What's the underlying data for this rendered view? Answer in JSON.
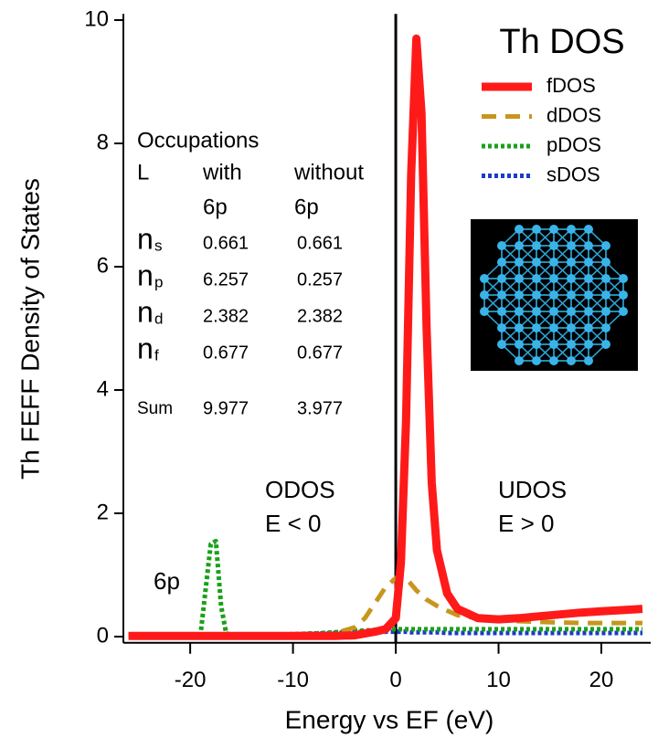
{
  "chart_data": {
    "type": "line",
    "xlabel": "Energy vs EF (eV)",
    "ylabel": "Th FEFF Density of States",
    "legend_title": "Th DOS",
    "legend_position": "upper right",
    "xlim": [
      -26.5,
      24.8
    ],
    "ylim": [
      -0.1,
      10.1
    ],
    "xticks": [
      -20,
      -10,
      0,
      10,
      20
    ],
    "yticks": [
      0,
      2,
      4,
      6,
      8,
      10
    ],
    "reference_line_x": 0,
    "x": [
      -26,
      -24,
      -22,
      -20,
      -19,
      -18,
      -17.5,
      -17,
      -16.5,
      -16,
      -14,
      -12,
      -10,
      -8,
      -6,
      -4,
      -3,
      -2,
      -1,
      0,
      0.5,
      1,
      1.5,
      2,
      2.5,
      3,
      3.5,
      4,
      5,
      6,
      8,
      10,
      12,
      14,
      16,
      18,
      20,
      22,
      24
    ],
    "series": [
      {
        "name": "fDOS",
        "color": "#ff1a1a",
        "style": "solid",
        "values": [
          0.01,
          0.01,
          0.01,
          0.01,
          0.01,
          0.01,
          0.01,
          0.01,
          0.01,
          0.01,
          0.01,
          0.01,
          0.01,
          0.01,
          0.01,
          0.02,
          0.05,
          0.08,
          0.12,
          0.3,
          1.2,
          3.5,
          7.5,
          9.7,
          8.5,
          5,
          2.5,
          1.4,
          0.7,
          0.45,
          0.3,
          0.28,
          0.3,
          0.33,
          0.36,
          0.39,
          0.41,
          0.43,
          0.45
        ]
      },
      {
        "name": "dDOS",
        "color": "#c8961e",
        "style": "dashed",
        "values": [
          0.02,
          0.02,
          0.02,
          0.02,
          0.02,
          0.02,
          0.02,
          0.02,
          0.02,
          0.02,
          0.02,
          0.02,
          0.02,
          0.02,
          0.05,
          0.15,
          0.3,
          0.55,
          0.8,
          0.95,
          1.0,
          0.95,
          0.85,
          0.75,
          0.68,
          0.6,
          0.55,
          0.5,
          0.42,
          0.35,
          0.3,
          0.27,
          0.25,
          0.24,
          0.23,
          0.22,
          0.22,
          0.22,
          0.22
        ]
      },
      {
        "name": "pDOS",
        "color": "#1aa01a",
        "style": "dotted",
        "values": [
          0.03,
          0.03,
          0.03,
          0.03,
          0.03,
          1.5,
          1.55,
          0.5,
          0.05,
          0.03,
          0.03,
          0.03,
          0.04,
          0.05,
          0.07,
          0.09,
          0.1,
          0.11,
          0.12,
          0.12,
          0.12,
          0.12,
          0.12,
          0.12,
          0.12,
          0.12,
          0.12,
          0.12,
          0.12,
          0.12,
          0.12,
          0.12,
          0.12,
          0.12,
          0.12,
          0.12,
          0.12,
          0.12,
          0.12
        ]
      },
      {
        "name": "sDOS",
        "color": "#1a3cc8",
        "style": "dotted",
        "values": [
          0.03,
          0.03,
          0.03,
          0.03,
          0.03,
          0.03,
          0.03,
          0.03,
          0.03,
          0.03,
          0.03,
          0.03,
          0.04,
          0.05,
          0.06,
          0.07,
          0.08,
          0.08,
          0.08,
          0.08,
          0.08,
          0.08,
          0.07,
          0.07,
          0.07,
          0.07,
          0.07,
          0.07,
          0.06,
          0.06,
          0.06,
          0.06,
          0.06,
          0.06,
          0.06,
          0.06,
          0.06,
          0.06,
          0.06
        ]
      }
    ],
    "annotations": [
      "6p",
      "ODOS",
      "E < 0",
      "UDOS",
      "E > 0"
    ],
    "occupations": {
      "title": "Occupations",
      "header": [
        "L",
        "with",
        "without"
      ],
      "header2": [
        "6p",
        "6p"
      ],
      "rows": [
        {
          "symbol": "n",
          "sub": "s",
          "with": 0.661,
          "without": 0.661
        },
        {
          "symbol": "n",
          "sub": "p",
          "with": 6.257,
          "without": 0.257
        },
        {
          "symbol": "n",
          "sub": "d",
          "with": 2.382,
          "without": 2.382
        },
        {
          "symbol": "n",
          "sub": "f",
          "with": 0.677,
          "without": 0.677
        }
      ],
      "sum": {
        "label": "Sum",
        "with": 9.977,
        "without": 3.977
      }
    }
  }
}
